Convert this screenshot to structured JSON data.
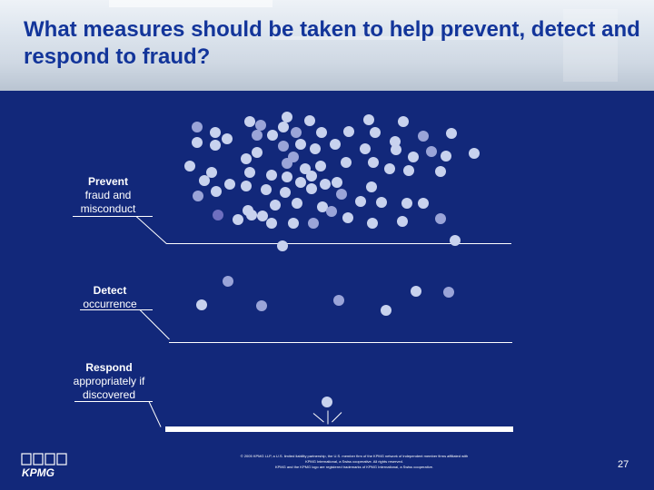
{
  "slide": {
    "title": "What measures should be taken to help prevent, detect and respond to fraud?",
    "prevent_label_bold": "Prevent",
    "prevent_label": "fraud and misconduct",
    "detect_label_bold": "Detect",
    "detect_label": "occurrence",
    "respond_label_bold": "Respond",
    "respond_label": "appropriately if discovered",
    "footer_lines": [
      "© 2005 KPMG LLP, a U.S. limited liability partnership, the U.S. member firm of the KPMG network of independent member firms affiliated with",
      "KPMG International, a Swiss cooperative. All rights reserved.",
      "KPMG and the KPMG logo are registered trademarks of KPMG International, a Swiss cooperative."
    ],
    "page_number": "27",
    "logo_text": "KPMG"
  },
  "colors": {
    "background": "#12287a",
    "title": "#13359a",
    "dot_light": "#c8d2ee",
    "dot_mid": "#9aa4d8",
    "dot_dark": "#6e6fc0"
  }
}
